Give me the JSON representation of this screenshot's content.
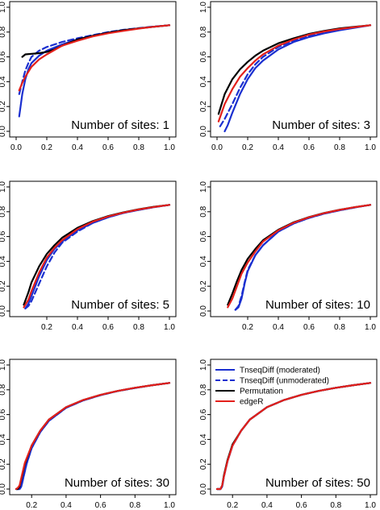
{
  "chart_data": {
    "type": "line",
    "layout": "3 rows x 2 columns of panels",
    "ylim": [
      0,
      1
    ],
    "yticks": [
      "0.0",
      "0.2",
      "0.4",
      "0.6",
      "0.8",
      "1.0"
    ],
    "grid": false,
    "legend": {
      "placement": "top-left of bottom-right panel",
      "entries": [
        {
          "label": "TnseqDiff (moderated)",
          "color": "#1a2fd0",
          "style": "solid"
        },
        {
          "label": "TnseqDiff (unmoderated)",
          "color": "#1a2fd0",
          "style": "dashed"
        },
        {
          "label": "Permutation",
          "color": "#000000",
          "style": "solid"
        },
        {
          "label": "edgeR",
          "color": "#e3201b",
          "style": "solid"
        }
      ]
    },
    "panels": [
      {
        "label": "Number of sites: 1",
        "xlim": [
          0,
          1
        ],
        "xticks": [
          "0.0",
          "0.2",
          "0.4",
          "0.6",
          "0.8",
          "1.0"
        ],
        "series": [
          {
            "method": "TnseqDiff (moderated)",
            "x": [
              0.02,
              0.04,
              0.06,
              0.08,
              0.1,
              0.15,
              0.2,
              0.3,
              0.4,
              0.5,
              0.6,
              0.7,
              0.8,
              0.9,
              1.0
            ],
            "y": [
              0.12,
              0.3,
              0.42,
              0.5,
              0.55,
              0.61,
              0.65,
              0.7,
              0.74,
              0.77,
              0.795,
              0.815,
              0.83,
              0.843,
              0.855
            ]
          },
          {
            "method": "TnseqDiff (unmoderated)",
            "x": [
              0.02,
              0.04,
              0.06,
              0.08,
              0.1,
              0.15,
              0.2,
              0.3,
              0.4,
              0.5,
              0.6,
              0.7,
              0.8,
              0.9,
              1.0
            ],
            "y": [
              0.3,
              0.4,
              0.49,
              0.55,
              0.6,
              0.65,
              0.68,
              0.72,
              0.75,
              0.775,
              0.8,
              0.818,
              0.832,
              0.845,
              0.855
            ]
          },
          {
            "method": "Permutation",
            "x": [
              0.04,
              0.06,
              0.1,
              0.15,
              0.2,
              0.25,
              0.3,
              0.4,
              0.5,
              0.6,
              0.7,
              0.8,
              0.9,
              1.0
            ],
            "y": [
              0.6,
              0.62,
              0.625,
              0.63,
              0.64,
              0.66,
              0.69,
              0.74,
              0.77,
              0.795,
              0.815,
              0.83,
              0.843,
              0.855
            ]
          },
          {
            "method": "edgeR",
            "x": [
              0.02,
              0.04,
              0.06,
              0.08,
              0.1,
              0.15,
              0.2,
              0.3,
              0.4,
              0.5,
              0.6,
              0.7,
              0.8,
              0.9,
              1.0
            ],
            "y": [
              0.33,
              0.39,
              0.44,
              0.48,
              0.52,
              0.58,
              0.62,
              0.69,
              0.73,
              0.765,
              0.79,
              0.81,
              0.828,
              0.843,
              0.855
            ]
          }
        ]
      },
      {
        "label": "Number of sites: 3",
        "xlim": [
          0,
          1
        ],
        "xticks": [
          "0.0",
          "0.2",
          "0.4",
          "0.6",
          "0.8",
          "1.0"
        ],
        "series": [
          {
            "method": "TnseqDiff (moderated)",
            "x": [
              0.05,
              0.07,
              0.1,
              0.15,
              0.2,
              0.25,
              0.3,
              0.4,
              0.5,
              0.6,
              0.7,
              0.8,
              0.9,
              1.0
            ],
            "y": [
              0.0,
              0.05,
              0.15,
              0.3,
              0.42,
              0.51,
              0.57,
              0.66,
              0.72,
              0.76,
              0.79,
              0.815,
              0.835,
              0.855
            ]
          },
          {
            "method": "TnseqDiff (unmoderated)",
            "x": [
              0.02,
              0.05,
              0.1,
              0.15,
              0.2,
              0.25,
              0.3,
              0.4,
              0.5,
              0.6,
              0.7,
              0.8,
              0.9,
              1.0
            ],
            "y": [
              0.04,
              0.1,
              0.22,
              0.35,
              0.46,
              0.54,
              0.6,
              0.68,
              0.73,
              0.77,
              0.8,
              0.82,
              0.838,
              0.855
            ]
          },
          {
            "method": "Permutation",
            "x": [
              0.01,
              0.05,
              0.1,
              0.15,
              0.2,
              0.25,
              0.3,
              0.4,
              0.5,
              0.6,
              0.7,
              0.8,
              0.9,
              1.0
            ],
            "y": [
              0.14,
              0.3,
              0.42,
              0.5,
              0.56,
              0.61,
              0.65,
              0.71,
              0.75,
              0.785,
              0.81,
              0.83,
              0.843,
              0.855
            ]
          },
          {
            "method": "edgeR",
            "x": [
              0.01,
              0.05,
              0.1,
              0.15,
              0.2,
              0.25,
              0.3,
              0.4,
              0.5,
              0.6,
              0.7,
              0.8,
              0.9,
              1.0
            ],
            "y": [
              0.08,
              0.22,
              0.34,
              0.44,
              0.51,
              0.57,
              0.62,
              0.69,
              0.74,
              0.78,
              0.805,
              0.825,
              0.84,
              0.855
            ]
          }
        ]
      },
      {
        "label": "Number of sites: 5",
        "xlim": [
          0,
          1
        ],
        "xticks": [
          "0.2",
          "0.4",
          "0.6",
          "0.8",
          "1.0"
        ],
        "series": [
          {
            "method": "TnseqDiff (moderated)",
            "x": [
              0.06,
              0.08,
              0.1,
              0.15,
              0.2,
              0.25,
              0.3,
              0.4,
              0.5,
              0.6,
              0.7,
              0.8,
              0.9,
              1.0
            ],
            "y": [
              0.02,
              0.06,
              0.12,
              0.28,
              0.41,
              0.5,
              0.56,
              0.65,
              0.71,
              0.755,
              0.79,
              0.815,
              0.837,
              0.855
            ]
          },
          {
            "method": "TnseqDiff (unmoderated)",
            "x": [
              0.06,
              0.08,
              0.1,
              0.15,
              0.2,
              0.25,
              0.3,
              0.4,
              0.5,
              0.6,
              0.7,
              0.8,
              0.9,
              1.0
            ],
            "y": [
              0.02,
              0.04,
              0.08,
              0.22,
              0.36,
              0.47,
              0.55,
              0.64,
              0.71,
              0.755,
              0.79,
              0.815,
              0.837,
              0.855
            ]
          },
          {
            "method": "Permutation",
            "x": [
              0.05,
              0.08,
              0.1,
              0.15,
              0.2,
              0.25,
              0.3,
              0.4,
              0.5,
              0.6,
              0.7,
              0.8,
              0.9,
              1.0
            ],
            "y": [
              0.05,
              0.15,
              0.23,
              0.36,
              0.46,
              0.53,
              0.59,
              0.67,
              0.725,
              0.765,
              0.795,
              0.82,
              0.84,
              0.855
            ]
          },
          {
            "method": "edgeR",
            "x": [
              0.05,
              0.08,
              0.1,
              0.15,
              0.2,
              0.25,
              0.3,
              0.4,
              0.5,
              0.6,
              0.7,
              0.8,
              0.9,
              1.0
            ],
            "y": [
              0.03,
              0.09,
              0.16,
              0.31,
              0.43,
              0.51,
              0.57,
              0.66,
              0.72,
              0.762,
              0.793,
              0.818,
              0.838,
              0.855
            ]
          }
        ]
      },
      {
        "label": "Number of sites: 10",
        "xlim": [
          0,
          1
        ],
        "xticks": [
          "0.2",
          "0.4",
          "0.6",
          "0.8",
          "1.0"
        ],
        "series": [
          {
            "method": "TnseqDiff (moderated)",
            "x": [
              0.12,
              0.14,
              0.16,
              0.18,
              0.2,
              0.25,
              0.3,
              0.4,
              0.5,
              0.6,
              0.7,
              0.8,
              0.9,
              1.0
            ],
            "y": [
              0.01,
              0.03,
              0.1,
              0.22,
              0.32,
              0.45,
              0.53,
              0.64,
              0.705,
              0.75,
              0.785,
              0.812,
              0.835,
              0.855
            ]
          },
          {
            "method": "TnseqDiff (unmoderated)",
            "x": [
              0.12,
              0.14,
              0.16,
              0.18,
              0.2,
              0.25,
              0.3,
              0.4,
              0.5,
              0.6,
              0.7,
              0.8,
              0.9,
              1.0
            ],
            "y": [
              0.01,
              0.04,
              0.12,
              0.23,
              0.33,
              0.45,
              0.53,
              0.64,
              0.705,
              0.75,
              0.785,
              0.812,
              0.835,
              0.855
            ]
          },
          {
            "method": "Permutation",
            "x": [
              0.07,
              0.1,
              0.13,
              0.16,
              0.2,
              0.25,
              0.3,
              0.4,
              0.5,
              0.6,
              0.7,
              0.8,
              0.9,
              1.0
            ],
            "y": [
              0.05,
              0.14,
              0.24,
              0.33,
              0.42,
              0.5,
              0.57,
              0.655,
              0.715,
              0.757,
              0.79,
              0.816,
              0.837,
              0.855
            ]
          },
          {
            "method": "edgeR",
            "x": [
              0.07,
              0.1,
              0.13,
              0.16,
              0.2,
              0.25,
              0.3,
              0.4,
              0.5,
              0.6,
              0.7,
              0.8,
              0.9,
              1.0
            ],
            "y": [
              0.03,
              0.1,
              0.2,
              0.3,
              0.39,
              0.48,
              0.56,
              0.65,
              0.712,
              0.755,
              0.789,
              0.815,
              0.837,
              0.855
            ]
          }
        ]
      },
      {
        "label": "Number of sites: 30",
        "xlim": [
          0.11,
          1
        ],
        "xticks": [
          "0.2",
          "0.4",
          "0.6",
          "0.8",
          "1.0"
        ],
        "series": [
          {
            "method": "TnseqDiff (moderated)",
            "x": [
              0.11,
              0.13,
              0.14,
              0.15,
              0.17,
              0.2,
              0.25,
              0.3,
              0.4,
              0.5,
              0.6,
              0.7,
              0.8,
              0.9,
              1.0
            ],
            "y": [
              0.0,
              0.0,
              0.02,
              0.08,
              0.2,
              0.33,
              0.46,
              0.55,
              0.655,
              0.715,
              0.757,
              0.79,
              0.815,
              0.837,
              0.855
            ]
          },
          {
            "method": "TnseqDiff (unmoderated)",
            "x": [
              0.11,
              0.13,
              0.14,
              0.15,
              0.17,
              0.2,
              0.25,
              0.3,
              0.4,
              0.5,
              0.6,
              0.7,
              0.8,
              0.9,
              1.0
            ],
            "y": [
              0.0,
              0.0,
              0.02,
              0.08,
              0.2,
              0.33,
              0.46,
              0.55,
              0.655,
              0.715,
              0.757,
              0.79,
              0.815,
              0.837,
              0.855
            ]
          },
          {
            "method": "Permutation",
            "x": [
              0.11,
              0.12,
              0.13,
              0.14,
              0.16,
              0.2,
              0.25,
              0.3,
              0.4,
              0.5,
              0.6,
              0.7,
              0.8,
              0.9,
              1.0
            ],
            "y": [
              0.0,
              0.0,
              0.02,
              0.08,
              0.2,
              0.35,
              0.47,
              0.56,
              0.66,
              0.718,
              0.759,
              0.791,
              0.816,
              0.837,
              0.855
            ]
          },
          {
            "method": "edgeR",
            "x": [
              0.11,
              0.12,
              0.13,
              0.14,
              0.16,
              0.2,
              0.25,
              0.3,
              0.4,
              0.5,
              0.6,
              0.7,
              0.8,
              0.9,
              1.0
            ],
            "y": [
              0.0,
              0.01,
              0.03,
              0.09,
              0.21,
              0.35,
              0.47,
              0.56,
              0.66,
              0.718,
              0.759,
              0.791,
              0.816,
              0.837,
              0.855
            ]
          }
        ]
      },
      {
        "label": "Number of sites: 50",
        "xlim": [
          0.11,
          1
        ],
        "xticks": [
          "0.2",
          "0.4",
          "0.6",
          "0.8",
          "1.0"
        ],
        "series": [
          {
            "method": "TnseqDiff (moderated)",
            "x": [
              0.11,
              0.13,
              0.14,
              0.15,
              0.17,
              0.2,
              0.25,
              0.3,
              0.4,
              0.5,
              0.6,
              0.7,
              0.8,
              0.9,
              1.0
            ],
            "y": [
              0.0,
              0.0,
              0.02,
              0.1,
              0.22,
              0.35,
              0.47,
              0.56,
              0.66,
              0.718,
              0.759,
              0.791,
              0.816,
              0.837,
              0.855
            ]
          },
          {
            "method": "TnseqDiff (unmoderated)",
            "x": [
              0.11,
              0.13,
              0.14,
              0.15,
              0.17,
              0.2,
              0.25,
              0.3,
              0.4,
              0.5,
              0.6,
              0.7,
              0.8,
              0.9,
              1.0
            ],
            "y": [
              0.0,
              0.0,
              0.02,
              0.1,
              0.22,
              0.35,
              0.47,
              0.56,
              0.66,
              0.718,
              0.759,
              0.791,
              0.816,
              0.837,
              0.855
            ]
          },
          {
            "method": "Permutation",
            "x": [
              0.11,
              0.13,
              0.14,
              0.15,
              0.17,
              0.2,
              0.25,
              0.3,
              0.4,
              0.5,
              0.6,
              0.7,
              0.8,
              0.9,
              1.0
            ],
            "y": [
              0.0,
              0.0,
              0.03,
              0.11,
              0.23,
              0.36,
              0.47,
              0.56,
              0.66,
              0.718,
              0.759,
              0.791,
              0.816,
              0.837,
              0.855
            ]
          },
          {
            "method": "edgeR",
            "x": [
              0.11,
              0.13,
              0.14,
              0.15,
              0.17,
              0.2,
              0.25,
              0.3,
              0.4,
              0.5,
              0.6,
              0.7,
              0.8,
              0.9,
              1.0
            ],
            "y": [
              0.0,
              0.0,
              0.03,
              0.1,
              0.22,
              0.35,
              0.47,
              0.56,
              0.66,
              0.718,
              0.759,
              0.791,
              0.816,
              0.837,
              0.855
            ]
          }
        ]
      }
    ]
  }
}
